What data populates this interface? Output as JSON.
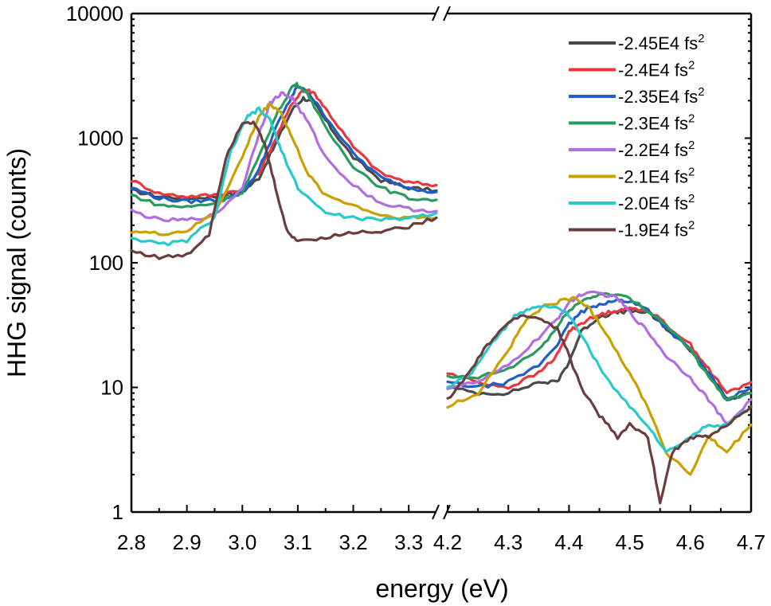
{
  "chart_data": {
    "type": "line",
    "title": "",
    "xlabel": "energy (eV)",
    "ylabel": "HHG signal (counts)",
    "yscale": "log",
    "ylim": [
      1,
      10000
    ],
    "y_ticks": [
      {
        "value": 1,
        "label": "1"
      },
      {
        "value": 10,
        "label": "10"
      },
      {
        "value": 100,
        "label": "100"
      },
      {
        "value": 1000,
        "label": "1000"
      },
      {
        "value": 10000,
        "label": "10000"
      }
    ],
    "x_segments": [
      {
        "range": [
          2.8,
          3.35
        ],
        "ticks": [
          {
            "value": 2.8,
            "label": "2.8"
          },
          {
            "value": 2.9,
            "label": "2.9"
          },
          {
            "value": 3.0,
            "label": "3.0"
          },
          {
            "value": 3.1,
            "label": "3.1"
          },
          {
            "value": 3.2,
            "label": "3.2"
          },
          {
            "value": 3.3,
            "label": "3.3"
          }
        ]
      },
      {
        "range": [
          4.2,
          4.7
        ],
        "ticks": [
          {
            "value": 4.2,
            "label": "4.2"
          },
          {
            "value": 4.3,
            "label": "4.3"
          },
          {
            "value": 4.4,
            "label": "4.4"
          },
          {
            "value": 4.5,
            "label": "4.5"
          },
          {
            "value": 4.6,
            "label": "4.6"
          },
          {
            "value": 4.7,
            "label": "4.7"
          }
        ]
      }
    ],
    "axis_break": "//",
    "legend_position": "top-right",
    "series": [
      {
        "name": "-2.45E4 fs",
        "sup": "2",
        "color": "#4a4a4a",
        "seg1": [
          [
            2.8,
            380
          ],
          [
            2.85,
            340
          ],
          [
            2.9,
            330
          ],
          [
            2.95,
            340
          ],
          [
            3.0,
            370
          ],
          [
            3.03,
            480
          ],
          [
            3.06,
            900
          ],
          [
            3.09,
            1700
          ],
          [
            3.11,
            2100
          ],
          [
            3.13,
            1900
          ],
          [
            3.16,
            1200
          ],
          [
            3.2,
            700
          ],
          [
            3.25,
            460
          ],
          [
            3.3,
            400
          ],
          [
            3.35,
            380
          ]
        ],
        "seg2": [
          [
            4.2,
            10
          ],
          [
            4.25,
            9
          ],
          [
            4.3,
            9
          ],
          [
            4.35,
            11
          ],
          [
            4.38,
            11
          ],
          [
            4.4,
            16
          ],
          [
            4.42,
            28
          ],
          [
            4.45,
            37
          ],
          [
            4.48,
            40
          ],
          [
            4.5,
            41
          ],
          [
            4.53,
            40
          ],
          [
            4.56,
            30
          ],
          [
            4.6,
            20
          ],
          [
            4.63,
            13
          ],
          [
            4.66,
            8
          ],
          [
            4.7,
            9
          ]
        ]
      },
      {
        "name": "-2.4E4 fs",
        "sup": "2",
        "color": "#e8383d",
        "seg1": [
          [
            2.8,
            460
          ],
          [
            2.85,
            360
          ],
          [
            2.9,
            340
          ],
          [
            2.95,
            350
          ],
          [
            3.0,
            390
          ],
          [
            3.03,
            520
          ],
          [
            3.06,
            1000
          ],
          [
            3.09,
            1900
          ],
          [
            3.11,
            2500
          ],
          [
            3.13,
            2300
          ],
          [
            3.16,
            1500
          ],
          [
            3.2,
            850
          ],
          [
            3.25,
            520
          ],
          [
            3.3,
            440
          ],
          [
            3.35,
            420
          ]
        ],
        "seg2": [
          [
            4.2,
            13
          ],
          [
            4.25,
            11
          ],
          [
            4.3,
            10
          ],
          [
            4.35,
            13
          ],
          [
            4.38,
            18
          ],
          [
            4.4,
            28
          ],
          [
            4.42,
            33
          ],
          [
            4.45,
            38
          ],
          [
            4.48,
            42
          ],
          [
            4.5,
            43
          ],
          [
            4.53,
            42
          ],
          [
            4.56,
            32
          ],
          [
            4.6,
            22
          ],
          [
            4.63,
            14
          ],
          [
            4.66,
            9
          ],
          [
            4.7,
            11
          ]
        ]
      },
      {
        "name": "-2.35E4 fs",
        "sup": "2",
        "color": "#1f5fc8",
        "seg1": [
          [
            2.8,
            400
          ],
          [
            2.85,
            330
          ],
          [
            2.9,
            310
          ],
          [
            2.95,
            320
          ],
          [
            3.0,
            360
          ],
          [
            3.03,
            560
          ],
          [
            3.06,
            1200
          ],
          [
            3.09,
            2200
          ],
          [
            3.1,
            2600
          ],
          [
            3.12,
            2300
          ],
          [
            3.15,
            1500
          ],
          [
            3.2,
            750
          ],
          [
            3.25,
            480
          ],
          [
            3.3,
            400
          ],
          [
            3.35,
            370
          ]
        ],
        "seg2": [
          [
            4.2,
            11
          ],
          [
            4.25,
            10
          ],
          [
            4.3,
            11
          ],
          [
            4.35,
            15
          ],
          [
            4.38,
            22
          ],
          [
            4.4,
            32
          ],
          [
            4.42,
            40
          ],
          [
            4.45,
            47
          ],
          [
            4.48,
            50
          ],
          [
            4.5,
            49
          ],
          [
            4.53,
            42
          ],
          [
            4.56,
            30
          ],
          [
            4.6,
            20
          ],
          [
            4.63,
            13
          ],
          [
            4.66,
            8
          ],
          [
            4.7,
            10
          ]
        ]
      },
      {
        "name": "-2.3E4 fs",
        "sup": "2",
        "color": "#2a9b5e",
        "seg1": [
          [
            2.8,
            350
          ],
          [
            2.85,
            290
          ],
          [
            2.9,
            280
          ],
          [
            2.95,
            300
          ],
          [
            3.0,
            370
          ],
          [
            3.03,
            700
          ],
          [
            3.06,
            1500
          ],
          [
            3.09,
            2600
          ],
          [
            3.1,
            2700
          ],
          [
            3.12,
            2200
          ],
          [
            3.15,
            1200
          ],
          [
            3.2,
            600
          ],
          [
            3.25,
            400
          ],
          [
            3.3,
            330
          ],
          [
            3.35,
            320
          ]
        ],
        "seg2": [
          [
            4.2,
            12
          ],
          [
            4.25,
            12
          ],
          [
            4.3,
            14
          ],
          [
            4.35,
            20
          ],
          [
            4.38,
            30
          ],
          [
            4.4,
            42
          ],
          [
            4.43,
            52
          ],
          [
            4.46,
            57
          ],
          [
            4.49,
            54
          ],
          [
            4.52,
            45
          ],
          [
            4.56,
            32
          ],
          [
            4.6,
            20
          ],
          [
            4.63,
            12
          ],
          [
            4.66,
            8
          ],
          [
            4.7,
            9
          ]
        ]
      },
      {
        "name": "-2.2E4 fs",
        "sup": "2",
        "color": "#b06ee0",
        "seg1": [
          [
            2.8,
            260
          ],
          [
            2.85,
            220
          ],
          [
            2.9,
            220
          ],
          [
            2.95,
            240
          ],
          [
            3.0,
            400
          ],
          [
            3.03,
            1100
          ],
          [
            3.05,
            1900
          ],
          [
            3.07,
            2300
          ],
          [
            3.09,
            2100
          ],
          [
            3.12,
            1300
          ],
          [
            3.15,
            700
          ],
          [
            3.2,
            420
          ],
          [
            3.25,
            300
          ],
          [
            3.3,
            270
          ],
          [
            3.35,
            260
          ]
        ],
        "seg2": [
          [
            4.2,
            10
          ],
          [
            4.25,
            11
          ],
          [
            4.3,
            15
          ],
          [
            4.35,
            25
          ],
          [
            4.38,
            35
          ],
          [
            4.4,
            48
          ],
          [
            4.42,
            56
          ],
          [
            4.45,
            57
          ],
          [
            4.48,
            52
          ],
          [
            4.5,
            40
          ],
          [
            4.53,
            28
          ],
          [
            4.56,
            18
          ],
          [
            4.6,
            12
          ],
          [
            4.63,
            8
          ],
          [
            4.66,
            5
          ],
          [
            4.7,
            8
          ]
        ]
      },
      {
        "name": "-2.1E4 fs",
        "sup": "2",
        "color": "#c9a000",
        "seg1": [
          [
            2.8,
            180
          ],
          [
            2.85,
            170
          ],
          [
            2.9,
            180
          ],
          [
            2.95,
            250
          ],
          [
            3.0,
            700
          ],
          [
            3.03,
            1500
          ],
          [
            3.05,
            1900
          ],
          [
            3.07,
            1600
          ],
          [
            3.09,
            1000
          ],
          [
            3.12,
            500
          ],
          [
            3.15,
            350
          ],
          [
            3.2,
            290
          ],
          [
            3.25,
            240
          ],
          [
            3.3,
            230
          ],
          [
            3.35,
            230
          ]
        ],
        "seg2": [
          [
            4.2,
            7
          ],
          [
            4.25,
            9
          ],
          [
            4.3,
            20
          ],
          [
            4.33,
            35
          ],
          [
            4.36,
            45
          ],
          [
            4.39,
            50
          ],
          [
            4.41,
            52
          ],
          [
            4.43,
            45
          ],
          [
            4.46,
            28
          ],
          [
            4.5,
            13
          ],
          [
            4.53,
            7
          ],
          [
            4.56,
            3
          ],
          [
            4.6,
            2
          ],
          [
            4.63,
            4
          ],
          [
            4.66,
            3
          ],
          [
            4.7,
            5
          ]
        ]
      },
      {
        "name": "-2.0E4 fs",
        "sup": "2",
        "color": "#2ac9c9",
        "seg1": [
          [
            2.8,
            160
          ],
          [
            2.85,
            140
          ],
          [
            2.9,
            150
          ],
          [
            2.95,
            230
          ],
          [
            2.98,
            800
          ],
          [
            3.01,
            1500
          ],
          [
            3.03,
            1700
          ],
          [
            3.05,
            1400
          ],
          [
            3.07,
            800
          ],
          [
            3.1,
            400
          ],
          [
            3.15,
            250
          ],
          [
            3.2,
            230
          ],
          [
            3.25,
            220
          ],
          [
            3.3,
            230
          ],
          [
            3.35,
            250
          ]
        ],
        "seg2": [
          [
            4.2,
            10
          ],
          [
            4.24,
            13
          ],
          [
            4.28,
            25
          ],
          [
            4.31,
            37
          ],
          [
            4.34,
            45
          ],
          [
            4.37,
            45
          ],
          [
            4.4,
            38
          ],
          [
            4.43,
            22
          ],
          [
            4.46,
            12
          ],
          [
            4.5,
            7
          ],
          [
            4.53,
            5
          ],
          [
            4.56,
            3
          ],
          [
            4.6,
            4
          ],
          [
            4.63,
            5
          ],
          [
            4.66,
            5
          ],
          [
            4.7,
            7
          ]
        ]
      },
      {
        "name": "-1.9E4 fs",
        "sup": "2",
        "color": "#6b3d3d",
        "seg1": [
          [
            2.8,
            125
          ],
          [
            2.85,
            110
          ],
          [
            2.9,
            115
          ],
          [
            2.94,
            170
          ],
          [
            2.97,
            700
          ],
          [
            3.0,
            1350
          ],
          [
            3.02,
            1350
          ],
          [
            3.04,
            900
          ],
          [
            3.06,
            400
          ],
          [
            3.08,
            180
          ],
          [
            3.1,
            150
          ],
          [
            3.15,
            160
          ],
          [
            3.2,
            175
          ],
          [
            3.25,
            180
          ],
          [
            3.3,
            195
          ],
          [
            3.35,
            230
          ]
        ],
        "seg2": [
          [
            4.2,
            8
          ],
          [
            4.23,
            12
          ],
          [
            4.26,
            20
          ],
          [
            4.29,
            30
          ],
          [
            4.32,
            38
          ],
          [
            4.35,
            36
          ],
          [
            4.38,
            30
          ],
          [
            4.4,
            18
          ],
          [
            4.42,
            10
          ],
          [
            4.45,
            6
          ],
          [
            4.48,
            4
          ],
          [
            4.5,
            5
          ],
          [
            4.53,
            4
          ],
          [
            4.55,
            1.2
          ],
          [
            4.57,
            3
          ],
          [
            4.6,
            4
          ],
          [
            4.63,
            4
          ],
          [
            4.66,
            5
          ],
          [
            4.7,
            7
          ]
        ]
      }
    ]
  }
}
